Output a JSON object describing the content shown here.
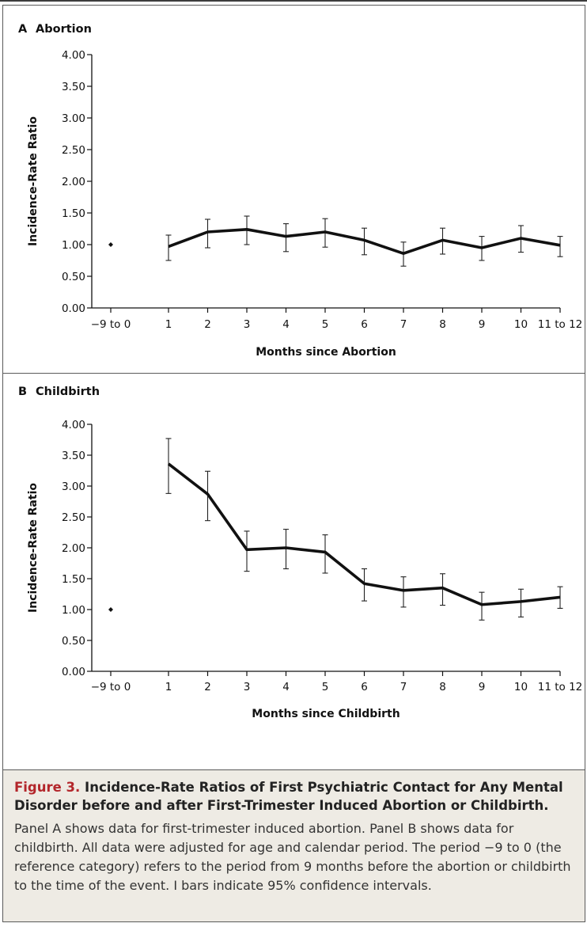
{
  "chart_data": [
    {
      "type": "line",
      "panel_letter": "A",
      "title": "Abortion",
      "xlabel": "Months since Abortion",
      "ylabel": "Incidence-Rate Ratio",
      "categories": [
        "−9 to 0",
        "1",
        "2",
        "3",
        "4",
        "5",
        "6",
        "7",
        "8",
        "9",
        "10",
        "11 to 12"
      ],
      "y_ticks": [
        "0.00",
        "0.50",
        "1.00",
        "1.50",
        "2.00",
        "2.50",
        "3.00",
        "3.50",
        "4.00"
      ],
      "ylim": [
        0,
        4
      ],
      "reference": {
        "category": "−9 to 0",
        "value": 1.0
      },
      "series": [
        {
          "values": [
            null,
            0.97,
            1.2,
            1.24,
            1.13,
            1.2,
            1.07,
            0.86,
            1.07,
            0.95,
            1.1,
            0.99
          ],
          "ci_low": [
            null,
            0.75,
            0.95,
            1.0,
            0.89,
            0.96,
            0.84,
            0.66,
            0.85,
            0.75,
            0.88,
            0.81
          ],
          "ci_high": [
            null,
            1.15,
            1.4,
            1.45,
            1.33,
            1.41,
            1.26,
            1.04,
            1.26,
            1.13,
            1.3,
            1.13
          ]
        }
      ]
    },
    {
      "type": "line",
      "panel_letter": "B",
      "title": "Childbirth",
      "xlabel": "Months since Childbirth",
      "ylabel": "Incidence-Rate Ratio",
      "categories": [
        "−9 to 0",
        "1",
        "2",
        "3",
        "4",
        "5",
        "6",
        "7",
        "8",
        "9",
        "10",
        "11 to 12"
      ],
      "y_ticks": [
        "0.00",
        "0.50",
        "1.00",
        "1.50",
        "2.00",
        "2.50",
        "3.00",
        "3.50",
        "4.00"
      ],
      "ylim": [
        0,
        4
      ],
      "reference": {
        "category": "−9 to 0",
        "value": 1.0
      },
      "series": [
        {
          "values": [
            null,
            3.36,
            2.87,
            1.97,
            2.0,
            1.93,
            1.42,
            1.31,
            1.35,
            1.08,
            1.13,
            1.2
          ],
          "ci_low": [
            null,
            2.88,
            2.44,
            1.62,
            1.66,
            1.59,
            1.14,
            1.04,
            1.07,
            0.83,
            0.88,
            1.02
          ],
          "ci_high": [
            null,
            3.77,
            3.24,
            2.27,
            2.3,
            2.21,
            1.66,
            1.53,
            1.58,
            1.28,
            1.33,
            1.37
          ]
        }
      ]
    }
  ],
  "caption": {
    "figure_label": "Figure 3.",
    "title": " Incidence-Rate Ratios of First Psychiatric Contact for Any Mental Disorder before and after First-Trimester Induced Abortion or Childbirth.",
    "body": "Panel A shows data for first-trimester induced abortion. Panel B shows data for childbirth. All data were adjusted for age and calendar period. The period −9 to 0 (the reference category) refers to the period from 9 months before the abortion or childbirth to the time of the event. I bars indicate 95% confidence intervals."
  }
}
